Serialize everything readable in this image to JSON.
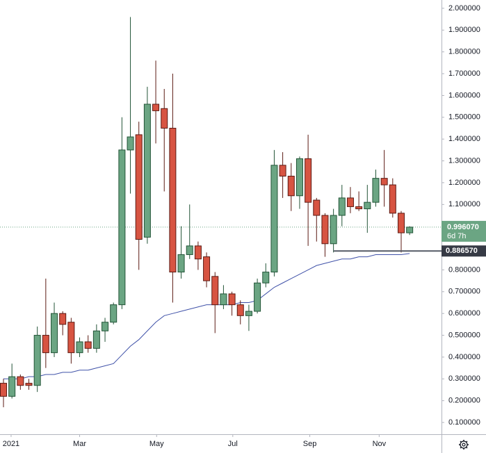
{
  "chart_data": {
    "type": "candlestick",
    "up_color": "#6ba583",
    "up_border": "#225437",
    "down_color": "#d75442",
    "down_border": "#5b1a13",
    "open": [
      0.28,
      0.22,
      0.31,
      0.28,
      0.27,
      0.5,
      0.42,
      0.6,
      0.56,
      0.42,
      0.47,
      0.44,
      0.52,
      0.56,
      0.64,
      1.35,
      1.42,
      0.95,
      1.56,
      1.54,
      1.45,
      0.79,
      0.87,
      0.91,
      0.86,
      0.77,
      0.64,
      0.69,
      0.64,
      0.59,
      0.61,
      0.74,
      0.79,
      1.28,
      1.23,
      1.14,
      1.31,
      1.12,
      1.05,
      0.92,
      1.05,
      1.13,
      1.09,
      1.08,
      1.11,
      1.22,
      1.19,
      1.06,
      0.97
    ],
    "high": [
      0.3,
      0.37,
      0.32,
      0.3,
      0.54,
      0.76,
      0.65,
      0.61,
      0.58,
      0.49,
      0.5,
      0.55,
      0.58,
      0.65,
      1.5,
      1.96,
      1.48,
      1.64,
      1.76,
      1.63,
      1.7,
      1.0,
      1.1,
      0.93,
      0.88,
      0.79,
      0.73,
      0.7,
      0.66,
      0.64,
      0.76,
      0.83,
      1.35,
      1.34,
      1.29,
      1.32,
      1.42,
      1.13,
      1.06,
      1.08,
      1.19,
      1.18,
      1.16,
      1.19,
      1.26,
      1.35,
      1.22,
      1.07,
      1.0
    ],
    "low": [
      0.17,
      0.21,
      0.25,
      0.25,
      0.24,
      0.35,
      0.4,
      0.5,
      0.37,
      0.4,
      0.42,
      0.42,
      0.47,
      0.55,
      0.62,
      1.15,
      0.8,
      0.92,
      1.38,
      1.16,
      0.65,
      0.76,
      0.85,
      0.8,
      0.72,
      0.51,
      0.62,
      0.59,
      0.55,
      0.52,
      0.6,
      0.72,
      0.77,
      1.13,
      1.07,
      1.08,
      0.91,
      0.93,
      0.86,
      0.88,
      1.0,
      1.06,
      1.07,
      0.97,
      1.09,
      1.09,
      1.04,
      0.88,
      0.96
    ],
    "close": [
      0.22,
      0.31,
      0.27,
      0.27,
      0.5,
      0.42,
      0.6,
      0.55,
      0.42,
      0.47,
      0.44,
      0.52,
      0.56,
      0.64,
      1.35,
      1.41,
      0.94,
      1.56,
      1.53,
      1.45,
      0.79,
      0.87,
      0.91,
      0.85,
      0.75,
      0.64,
      0.69,
      0.64,
      0.59,
      0.61,
      0.74,
      0.79,
      1.28,
      1.23,
      1.14,
      1.31,
      1.11,
      1.05,
      0.92,
      1.05,
      1.13,
      1.09,
      1.08,
      1.11,
      1.22,
      1.19,
      1.06,
      0.97,
      0.99607
    ],
    "ma": {
      "color": "#3f51a8",
      "values": [
        0.3,
        0.3,
        0.3,
        0.31,
        0.31,
        0.32,
        0.32,
        0.33,
        0.33,
        0.34,
        0.34,
        0.35,
        0.36,
        0.37,
        0.41,
        0.45,
        0.48,
        0.52,
        0.56,
        0.59,
        0.6,
        0.61,
        0.62,
        0.63,
        0.64,
        0.64,
        0.64,
        0.64,
        0.65,
        0.65,
        0.66,
        0.69,
        0.72,
        0.74,
        0.76,
        0.78,
        0.8,
        0.82,
        0.83,
        0.84,
        0.85,
        0.85,
        0.86,
        0.86,
        0.87,
        0.87,
        0.87,
        0.87,
        0.875
      ]
    },
    "last_price": {
      "value": 0.99607,
      "label": "0.996070",
      "countdown": "6d 7h"
    },
    "level": {
      "value": 0.88657,
      "label": "0.886570"
    },
    "ylim": [
      0.046,
      2.038
    ],
    "yticks": [
      {
        "value": 2.0,
        "label": "2.000000"
      },
      {
        "value": 1.9,
        "label": "1.900000"
      },
      {
        "value": 1.8,
        "label": "1.800000"
      },
      {
        "value": 1.7,
        "label": "1.700000"
      },
      {
        "value": 1.6,
        "label": "1.600000"
      },
      {
        "value": 1.5,
        "label": "1.500000"
      },
      {
        "value": 1.4,
        "label": "1.400000"
      },
      {
        "value": 1.3,
        "label": "1.300000"
      },
      {
        "value": 1.2,
        "label": "1.200000"
      },
      {
        "value": 1.1,
        "label": "1.100000"
      },
      {
        "value": 0.8,
        "label": "0.800000"
      },
      {
        "value": 0.7,
        "label": "0.700000"
      },
      {
        "value": 0.6,
        "label": "0.600000"
      },
      {
        "value": 0.5,
        "label": "0.500000"
      },
      {
        "value": 0.4,
        "label": "0.400000"
      },
      {
        "value": 0.3,
        "label": "0.300000"
      },
      {
        "value": 0.2,
        "label": "0.200000"
      },
      {
        "value": 0.1,
        "label": "0.100000"
      }
    ],
    "xticks": [
      {
        "value": 0.9,
        "label": "2021"
      },
      {
        "value": 9.0,
        "label": "Mar"
      },
      {
        "value": 18.1,
        "label": "May"
      },
      {
        "value": 27.1,
        "label": "Jul"
      },
      {
        "value": 36.2,
        "label": "Sep"
      },
      {
        "value": 44.4,
        "label": "Nov"
      }
    ]
  }
}
